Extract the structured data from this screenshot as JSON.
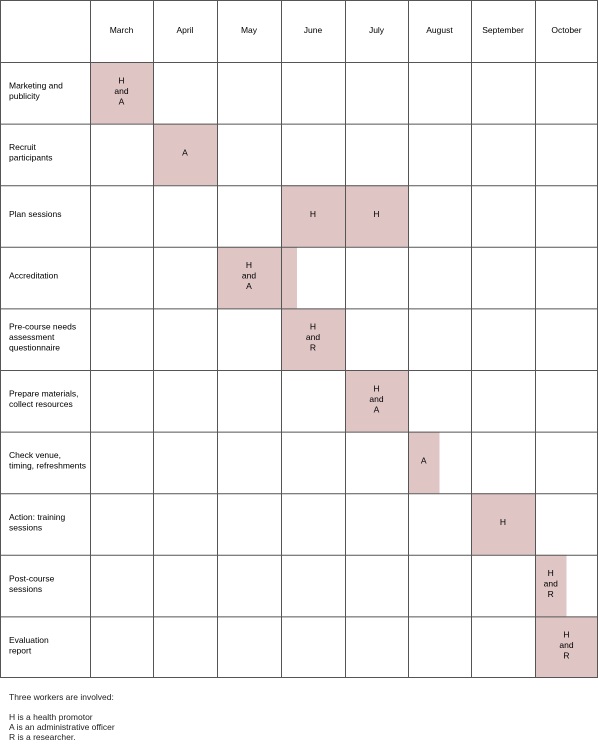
{
  "months": [
    "March",
    "April",
    "May",
    "June",
    "July",
    "August",
    "September",
    "October"
  ],
  "tasks": [
    {
      "label": [
        "Marketing and",
        "publicity"
      ],
      "marks": [
        {
          "month": 0,
          "span": 1,
          "text": [
            "H",
            "and",
            "A"
          ]
        }
      ]
    },
    {
      "label": [
        "Recruit",
        "participants"
      ],
      "marks": [
        {
          "month": 1,
          "span": 1,
          "text": [
            "A"
          ]
        }
      ]
    },
    {
      "label": [
        "Plan sessions"
      ],
      "marks": [
        {
          "month": 3,
          "span": 1,
          "text": [
            "H"
          ]
        },
        {
          "month": 4,
          "span": 1,
          "text": [
            "H"
          ]
        }
      ]
    },
    {
      "label": [
        "Accreditation"
      ],
      "marks": [
        {
          "month": 2,
          "span": 1.25,
          "text": [
            "H",
            "and",
            "A"
          ]
        }
      ]
    },
    {
      "label": [
        "Pre-course needs",
        "assessment",
        "questionnaire"
      ],
      "marks": [
        {
          "month": 3,
          "span": 1,
          "text": [
            "H",
            "and",
            "R"
          ]
        }
      ]
    },
    {
      "label": [
        "Prepare materials,",
        "collect resources"
      ],
      "marks": [
        {
          "month": 4,
          "span": 1,
          "text": [
            "H",
            "and",
            "A"
          ]
        }
      ]
    },
    {
      "label": [
        "Check venue,",
        "timing, refreshments"
      ],
      "marks": [
        {
          "month": 5,
          "span": 0.5,
          "text": [
            "A"
          ]
        }
      ]
    },
    {
      "label": [
        "Action: training",
        "sessions"
      ],
      "marks": [
        {
          "month": 6,
          "span": 1,
          "text": [
            "H"
          ]
        }
      ]
    },
    {
      "label": [
        "Post-course",
        "sessions"
      ],
      "marks": [
        {
          "month": 7,
          "span": 0.5,
          "text": [
            "H",
            "and",
            "R"
          ]
        }
      ]
    },
    {
      "label": [
        "Evaluation",
        "report"
      ],
      "marks": [
        {
          "month": 7,
          "span": 1,
          "text": [
            "H",
            "and",
            "R"
          ]
        }
      ]
    }
  ],
  "legend": {
    "intro": "Three workers are involved:",
    "h": "H is a health promotor",
    "a": "A is an administrative officer",
    "r": "R is a researcher."
  },
  "colors": {
    "shade": "#dfc5c4",
    "line": "#555555"
  }
}
